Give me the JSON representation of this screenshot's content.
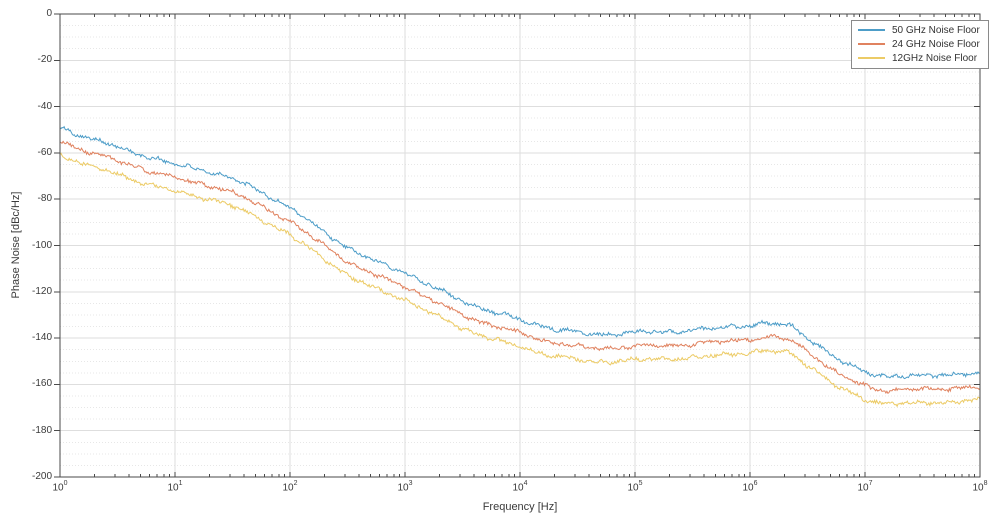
{
  "chart_data": {
    "type": "line",
    "title": "",
    "xlabel": "Frequency [Hz]",
    "ylabel": "Phase Noise [dBc/Hz]",
    "x_scale": "log10",
    "xlim_log10": [
      0,
      8
    ],
    "ylim": [
      -200,
      0
    ],
    "grid": {
      "y_major_step": 20,
      "y_minor_step": 5,
      "x_major": "decades",
      "major_color": "#dedede",
      "minor_color": "#e7e7e7"
    },
    "axis_color": "#4a4a4a",
    "x_tick_base": "10",
    "x_tick_exponents": [
      0,
      1,
      2,
      3,
      4,
      5,
      6,
      7,
      8
    ],
    "y_ticks": [
      0,
      -20,
      -40,
      -60,
      -80,
      -100,
      -120,
      -140,
      -160,
      -180,
      -200
    ],
    "y_tick_labels": [
      "0",
      "-20",
      "-40",
      "-60",
      "-80",
      "-100",
      "-120",
      "-140",
      "-160",
      "-180",
      "-200"
    ],
    "legend_position": "top-right",
    "control_log10_x": [
      0,
      0.25,
      0.5,
      0.75,
      1,
      1.2,
      1.45,
      1.65,
      1.85,
      2,
      2.25,
      2.5,
      2.75,
      3,
      3.25,
      3.5,
      3.75,
      4,
      4.25,
      4.5,
      4.7,
      5,
      5.3,
      5.6,
      5.9,
      6.15,
      6.35,
      6.55,
      6.75,
      7,
      7.2,
      7.45,
      7.7,
      8
    ],
    "series": [
      {
        "name": "50 GHz Noise Floor",
        "color": "#4d9dc8",
        "phase_noise_dbc_hz": [
          -49,
          -53.5,
          -57.5,
          -61.5,
          -65,
          -67,
          -70,
          -74.5,
          -79.5,
          -83.5,
          -92.5,
          -101,
          -107,
          -111.5,
          -118,
          -124,
          -128.5,
          -132,
          -135.5,
          -137.6,
          -138.4,
          -137.6,
          -137.2,
          -136.3,
          -134.8,
          -133.6,
          -134.6,
          -141.5,
          -149,
          -154.8,
          -156.6,
          -156.4,
          -155.7,
          -155.2
        ]
      },
      {
        "name": "24 GHz Noise Floor",
        "color": "#e0825f",
        "phase_noise_dbc_hz": [
          -55,
          -59.5,
          -63.5,
          -67.5,
          -71,
          -73,
          -76,
          -80.5,
          -85.5,
          -89.5,
          -98.5,
          -107,
          -113,
          -117.5,
          -124,
          -130,
          -134.5,
          -138,
          -141.5,
          -143.6,
          -144.4,
          -143.6,
          -143.2,
          -142.3,
          -140.8,
          -139.6,
          -140.6,
          -147.5,
          -155,
          -160.8,
          -162.6,
          -162.4,
          -161.7,
          -161.2
        ]
      },
      {
        "name": "12GHz Noise Floor",
        "color": "#eccb66",
        "phase_noise_dbc_hz": [
          -60.8,
          -65.3,
          -69.3,
          -73.3,
          -76.8,
          -78.8,
          -81.8,
          -86.3,
          -91.3,
          -95.3,
          -104.3,
          -112.8,
          -118.8,
          -123.3,
          -129.8,
          -135.8,
          -140.3,
          -143.8,
          -147.3,
          -149.4,
          -150.2,
          -149.4,
          -149,
          -148.1,
          -146.6,
          -145.4,
          -146.4,
          -153.3,
          -160.8,
          -166.6,
          -168.4,
          -168.2,
          -167.5,
          -167
        ]
      }
    ]
  }
}
